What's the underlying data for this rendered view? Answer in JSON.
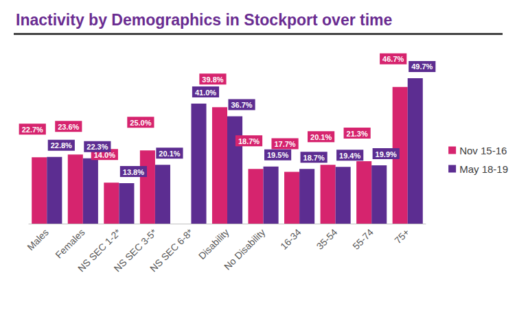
{
  "chart_data": {
    "type": "bar",
    "title": "Inactivity by Demographics in Stockport over time",
    "categories": [
      "Males",
      "Females",
      "NS SEC 1-2*",
      "NS SEC 3-5*",
      "NS SEC 6-8*",
      "Disability",
      "No Disability",
      "16-34",
      "35-54",
      "55-74",
      "75+"
    ],
    "series": [
      {
        "name": "Nov 15-16",
        "color": "#d6246e",
        "values": [
          22.7,
          23.6,
          14.0,
          25.0,
          null,
          39.8,
          18.7,
          17.7,
          20.1,
          21.3,
          46.7
        ],
        "value_labels": [
          "22.7%",
          "23.6%",
          "14.0%",
          "25.0%",
          null,
          "39.8%",
          "18.7%",
          "17.7%",
          "20.1%",
          "21.3%",
          "46.7%"
        ]
      },
      {
        "name": "May 18-19",
        "color": "#5c2d91",
        "values": [
          22.8,
          22.3,
          13.8,
          20.1,
          41.0,
          36.7,
          19.5,
          18.7,
          19.4,
          19.9,
          49.7
        ],
        "value_labels": [
          "22.8%",
          "22.3%",
          "13.8%",
          "20.1%",
          "41.0%",
          "36.7%",
          "19.5%",
          "18.7%",
          "19.4%",
          "19.9%",
          "49.7%"
        ]
      }
    ],
    "ylim": [
      0,
      60
    ],
    "grid": false,
    "legend": "right",
    "data_labels": true,
    "tick_labels": "x"
  }
}
